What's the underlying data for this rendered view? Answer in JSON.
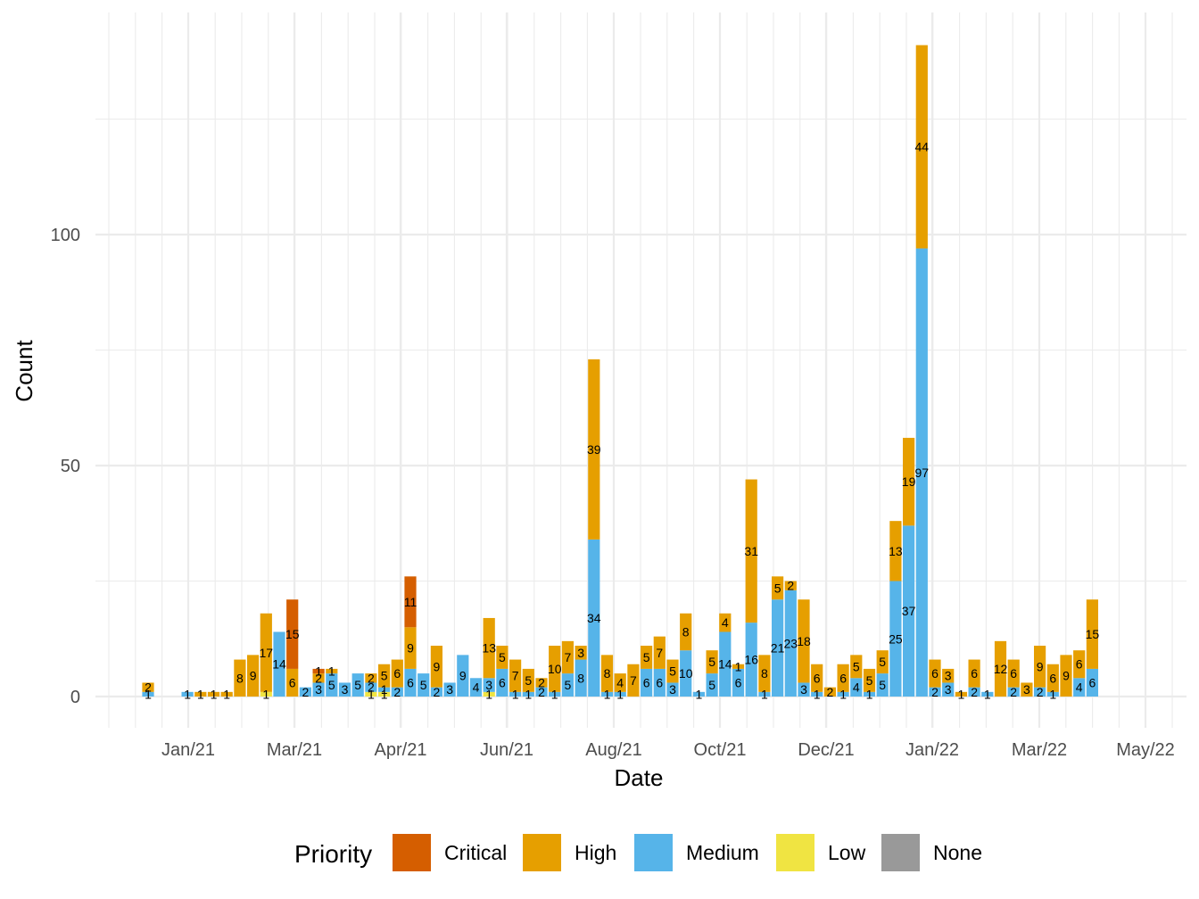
{
  "chart_data": {
    "type": "bar",
    "stacked": true,
    "xlabel": "Date",
    "ylabel": "Count",
    "x_ticks": [
      "Jan/21",
      "Mar/21",
      "Apr/21",
      "Jun/21",
      "Aug/21",
      "Oct/21",
      "Dec/21",
      "Jan/22",
      "Mar/22",
      "May/22"
    ],
    "y_ticks": [
      "0",
      "50",
      "100"
    ],
    "ylim": [
      -7,
      148
    ],
    "grid": true,
    "legend": {
      "title": "Priority",
      "position": "bottom",
      "items": [
        {
          "name": "Critical",
          "color": "#D55E00"
        },
        {
          "name": "High",
          "color": "#E69F00"
        },
        {
          "name": "Medium",
          "color": "#56B4E9"
        },
        {
          "name": "Low",
          "color": "#F0E442"
        },
        {
          "name": "None",
          "color": "#999999"
        }
      ]
    },
    "series": [
      {
        "name": "Critical",
        "color": "#D55E00",
        "points": [
          {
            "x": "2021-02-22",
            "value": 15
          },
          {
            "x": "2021-03-08",
            "value": 1
          },
          {
            "x": "2021-04-26",
            "value": 11
          }
        ]
      },
      {
        "name": "High",
        "color": "#E69F00",
        "points": [
          {
            "x": "2020-12-07",
            "value": 2
          },
          {
            "x": "2021-01-04",
            "value": 1
          },
          {
            "x": "2021-01-11",
            "value": 1
          },
          {
            "x": "2021-01-18",
            "value": 1
          },
          {
            "x": "2021-01-25",
            "value": 8
          },
          {
            "x": "2021-02-01",
            "value": 9
          },
          {
            "x": "2021-02-08",
            "value": 17
          },
          {
            "x": "2021-02-22",
            "value": 6
          },
          {
            "x": "2021-03-08",
            "value": 2
          },
          {
            "x": "2021-03-15",
            "value": 1
          },
          {
            "x": "2021-04-05",
            "value": 2
          },
          {
            "x": "2021-04-12",
            "value": 5
          },
          {
            "x": "2021-04-19",
            "value": 6
          },
          {
            "x": "2021-04-26",
            "value": 9
          },
          {
            "x": "2021-05-10",
            "value": 9
          },
          {
            "x": "2021-06-07",
            "value": 13
          },
          {
            "x": "2021-06-14",
            "value": 5
          },
          {
            "x": "2021-06-21",
            "value": 7
          },
          {
            "x": "2021-06-28",
            "value": 5
          },
          {
            "x": "2021-07-05",
            "value": 2
          },
          {
            "x": "2021-07-12",
            "value": 10
          },
          {
            "x": "2021-07-19",
            "value": 7
          },
          {
            "x": "2021-07-26",
            "value": 3
          },
          {
            "x": "2021-08-02",
            "value": 39
          },
          {
            "x": "2021-08-09",
            "value": 8
          },
          {
            "x": "2021-08-16",
            "value": 4
          },
          {
            "x": "2021-08-23",
            "value": 7
          },
          {
            "x": "2021-08-30",
            "value": 5
          },
          {
            "x": "2021-09-06",
            "value": 7
          },
          {
            "x": "2021-09-13",
            "value": 5
          },
          {
            "x": "2021-09-20",
            "value": 8
          },
          {
            "x": "2021-10-04",
            "value": 5
          },
          {
            "x": "2021-10-11",
            "value": 4
          },
          {
            "x": "2021-10-18",
            "value": 1
          },
          {
            "x": "2021-10-25",
            "value": 31
          },
          {
            "x": "2021-11-01",
            "value": 8
          },
          {
            "x": "2021-11-08",
            "value": 5
          },
          {
            "x": "2021-11-15",
            "value": 2
          },
          {
            "x": "2021-11-22",
            "value": 18
          },
          {
            "x": "2021-11-29",
            "value": 6
          },
          {
            "x": "2021-12-06",
            "value": 2
          },
          {
            "x": "2021-12-13",
            "value": 6
          },
          {
            "x": "2021-12-20",
            "value": 5
          },
          {
            "x": "2021-12-27",
            "value": 5
          },
          {
            "x": "2022-01-03",
            "value": 5
          },
          {
            "x": "2022-01-10",
            "value": 13
          },
          {
            "x": "2022-01-17",
            "value": 19
          },
          {
            "x": "2022-01-24",
            "value": 44
          },
          {
            "x": "2022-01-31",
            "value": 6
          },
          {
            "x": "2022-02-07",
            "value": 3
          },
          {
            "x": "2022-02-14",
            "value": 1
          },
          {
            "x": "2022-02-21",
            "value": 6
          },
          {
            "x": "2022-03-07",
            "value": 12
          },
          {
            "x": "2022-03-14",
            "value": 6
          },
          {
            "x": "2022-03-21",
            "value": 3
          },
          {
            "x": "2022-03-28",
            "value": 9
          },
          {
            "x": "2022-04-04",
            "value": 6
          },
          {
            "x": "2022-04-11",
            "value": 9
          },
          {
            "x": "2022-04-18",
            "value": 6
          },
          {
            "x": "2022-04-25",
            "value": 15
          }
        ]
      },
      {
        "name": "Medium",
        "color": "#56B4E9",
        "points": [
          {
            "x": "2020-12-07",
            "value": 1
          },
          {
            "x": "2020-12-28",
            "value": 1
          },
          {
            "x": "2021-02-15",
            "value": 14
          },
          {
            "x": "2021-03-01",
            "value": 2
          },
          {
            "x": "2021-03-08",
            "value": 3
          },
          {
            "x": "2021-03-15",
            "value": 5
          },
          {
            "x": "2021-03-22",
            "value": 3
          },
          {
            "x": "2021-03-29",
            "value": 5
          },
          {
            "x": "2021-04-05",
            "value": 2
          },
          {
            "x": "2021-04-12",
            "value": 1
          },
          {
            "x": "2021-04-19",
            "value": 2
          },
          {
            "x": "2021-04-26",
            "value": 6
          },
          {
            "x": "2021-05-03",
            "value": 5
          },
          {
            "x": "2021-05-10",
            "value": 2
          },
          {
            "x": "2021-05-17",
            "value": 3
          },
          {
            "x": "2021-05-24",
            "value": 9
          },
          {
            "x": "2021-05-31",
            "value": 4
          },
          {
            "x": "2021-06-07",
            "value": 3
          },
          {
            "x": "2021-06-14",
            "value": 6
          },
          {
            "x": "2021-06-21",
            "value": 1
          },
          {
            "x": "2021-06-28",
            "value": 1
          },
          {
            "x": "2021-07-05",
            "value": 2
          },
          {
            "x": "2021-07-12",
            "value": 1
          },
          {
            "x": "2021-07-19",
            "value": 5
          },
          {
            "x": "2021-07-26",
            "value": 8
          },
          {
            "x": "2021-08-02",
            "value": 34
          },
          {
            "x": "2021-08-09",
            "value": 1
          },
          {
            "x": "2021-08-16",
            "value": 1
          },
          {
            "x": "2021-08-30",
            "value": 6
          },
          {
            "x": "2021-09-06",
            "value": 6
          },
          {
            "x": "2021-09-13",
            "value": 3
          },
          {
            "x": "2021-09-20",
            "value": 10
          },
          {
            "x": "2021-09-27",
            "value": 1
          },
          {
            "x": "2021-10-04",
            "value": 5
          },
          {
            "x": "2021-10-11",
            "value": 14
          },
          {
            "x": "2021-10-18",
            "value": 6
          },
          {
            "x": "2021-10-25",
            "value": 16
          },
          {
            "x": "2021-11-01",
            "value": 1
          },
          {
            "x": "2021-11-08",
            "value": 21
          },
          {
            "x": "2021-11-15",
            "value": 23
          },
          {
            "x": "2021-11-22",
            "value": 3
          },
          {
            "x": "2021-11-29",
            "value": 1
          },
          {
            "x": "2021-12-13",
            "value": 1
          },
          {
            "x": "2021-12-20",
            "value": 4
          },
          {
            "x": "2021-12-27",
            "value": 1
          },
          {
            "x": "2022-01-03",
            "value": 5
          },
          {
            "x": "2022-01-10",
            "value": 25
          },
          {
            "x": "2022-01-17",
            "value": 37
          },
          {
            "x": "2022-01-24",
            "value": 97
          },
          {
            "x": "2022-01-31",
            "value": 2
          },
          {
            "x": "2022-02-07",
            "value": 3
          },
          {
            "x": "2022-02-21",
            "value": 2
          },
          {
            "x": "2022-02-28",
            "value": 1
          },
          {
            "x": "2022-03-14",
            "value": 2
          },
          {
            "x": "2022-03-28",
            "value": 2
          },
          {
            "x": "2022-04-04",
            "value": 1
          },
          {
            "x": "2022-04-18",
            "value": 4
          },
          {
            "x": "2022-04-25",
            "value": 6
          }
        ]
      },
      {
        "name": "Low",
        "color": "#F0E442",
        "points": [
          {
            "x": "2021-02-08",
            "value": 1
          },
          {
            "x": "2021-04-05",
            "value": 1
          },
          {
            "x": "2021-04-12",
            "value": 1
          },
          {
            "x": "2021-06-07",
            "value": 1
          }
        ]
      },
      {
        "name": "None",
        "color": "#999999",
        "points": []
      }
    ]
  }
}
